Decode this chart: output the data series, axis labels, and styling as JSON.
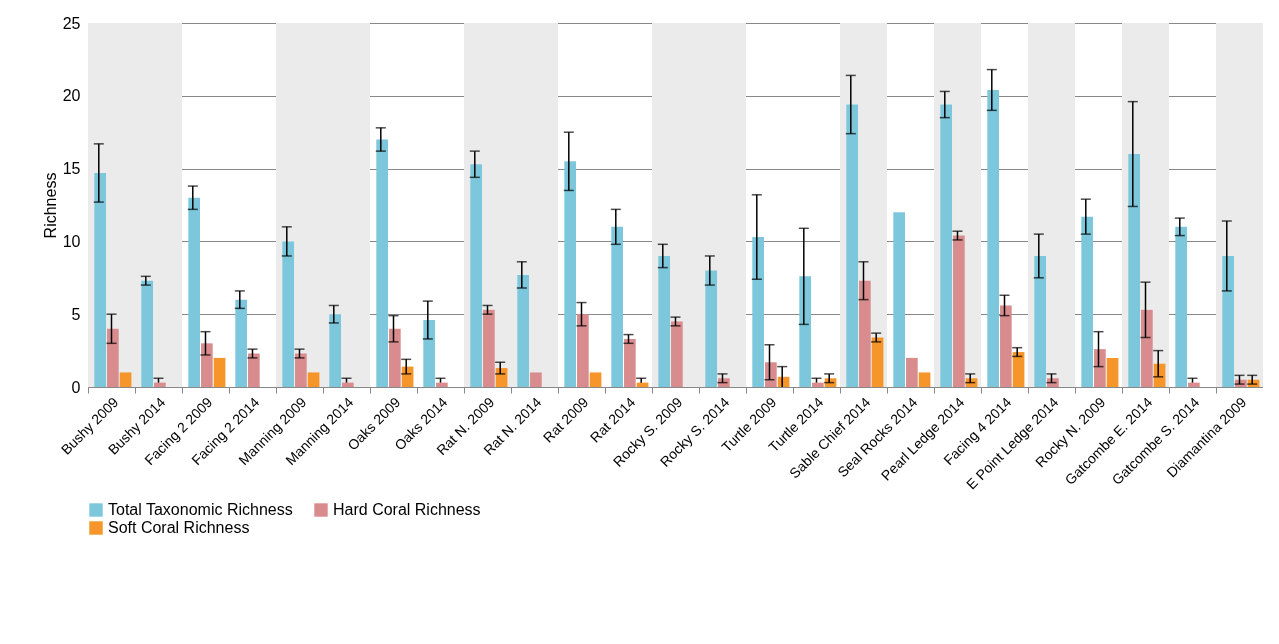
{
  "chart_data": {
    "type": "bar",
    "ylabel": "Richness",
    "categories": [
      "Bushy 2009",
      "Bushy 2014",
      "Facing 2 2009",
      "Facing 2 2014",
      "Manning 2009",
      "Manning 2014",
      "Oaks 2009",
      "Oaks 2014",
      "Rat N. 2009",
      "Rat N. 2014",
      "Rat 2009",
      "Rat 2014",
      "Rocky S. 2009",
      "Rocky S. 2014",
      "Turtle 2009",
      "Turtle 2014",
      "Sable Chief 2014",
      "Seal Rocks 2014",
      "Pearl Ledge 2014",
      "Facing 4 2014",
      "E Point Ledge 2014",
      "Rocky N. 2009",
      "Gatcombe E. 2014",
      "Gatcombe S. 2014",
      "Diamantina 2009"
    ],
    "series": [
      {
        "name": "Total Taxonomic Richness",
        "color": "#7cc7dc",
        "values": [
          14.7,
          7.3,
          13,
          6,
          10,
          5,
          17,
          4.6,
          15.3,
          7.7,
          15.5,
          11,
          9,
          8,
          10.3,
          7.6,
          19.4,
          12,
          19.4,
          20.4,
          9,
          11.7,
          16,
          11,
          9
        ],
        "errors": [
          2,
          0.3,
          0.8,
          0.6,
          1,
          0.6,
          0.8,
          1.3,
          0.9,
          0.9,
          2,
          1.2,
          0.8,
          1,
          2.9,
          3.3,
          2,
          null,
          0.9,
          1.4,
          1.5,
          1.2,
          3.6,
          0.6,
          2.4
        ]
      },
      {
        "name": "Hard Coral Richness",
        "color": "#d98c8e",
        "values": [
          4,
          0.3,
          3,
          2.3,
          2.3,
          0.3,
          4,
          0.3,
          5.3,
          1,
          5,
          3.3,
          4.5,
          0.6,
          1.7,
          0.3,
          7.3,
          2,
          10.4,
          5.6,
          0.6,
          2.6,
          5.3,
          0.3,
          0.5
        ],
        "errors": [
          1,
          [
            0.3,
            0.6
          ],
          0.8,
          0.3,
          0.3,
          [
            0.3,
            0.6
          ],
          0.9,
          [
            0.3,
            0.6
          ],
          0.3,
          null,
          0.8,
          0.3,
          0.3,
          0.3,
          1.2,
          [
            0.3,
            0.6
          ],
          1.3,
          null,
          0.3,
          0.7,
          0.3,
          1.2,
          1.9,
          [
            0.3,
            0.6
          ],
          0.3
        ]
      },
      {
        "name": "Soft Coral Richness",
        "color": "#f5952a",
        "values": [
          1,
          null,
          2,
          null,
          1,
          null,
          1.4,
          null,
          1.3,
          null,
          1,
          0.3,
          null,
          null,
          0.7,
          0.6,
          3.4,
          1,
          0.6,
          2.4,
          null,
          2,
          1.6,
          null,
          0.5
        ],
        "errors": [
          null,
          null,
          null,
          null,
          null,
          null,
          0.5,
          null,
          0.4,
          null,
          null,
          [
            0.3,
            0.6
          ],
          null,
          null,
          0.7,
          0.3,
          0.3,
          null,
          0.3,
          0.3,
          null,
          null,
          0.9,
          null,
          0.3
        ]
      }
    ],
    "ylim": [
      0,
      25
    ],
    "yticks": [
      0,
      5,
      10,
      15,
      20,
      25
    ],
    "grid": "y",
    "legend": "bottom",
    "bands": [
      {
        "axis": "x",
        "from": "Bushy 2009",
        "to": "Bushy 2009",
        "color": "#ebebeb"
      },
      {
        "axis": "x",
        "from": "Bushy 2014",
        "to": "Bushy 2014",
        "color": "#ebebeb"
      },
      {
        "axis": "x",
        "from": "Manning 2009",
        "to": "Manning 2009",
        "color": "#ebebeb"
      },
      {
        "axis": "x",
        "from": "Manning 2014",
        "to": "Manning 2014",
        "color": "#ebebeb"
      },
      {
        "axis": "x",
        "from": "Rat N. 2009",
        "to": "Rat N. 2009",
        "color": "#ebebeb"
      },
      {
        "axis": "x",
        "from": "Rat N. 2014",
        "to": "Rat N. 2014",
        "color": "#ebebeb"
      },
      {
        "axis": "x",
        "from": "Rocky S. 2009",
        "to": "Rocky S. 2009",
        "color": "#ebebeb"
      },
      {
        "axis": "x",
        "from": "Rocky S. 2014",
        "to": "Rocky S. 2014",
        "color": "#ebebeb"
      },
      {
        "axis": "x",
        "from": "Sable Chief 2014",
        "to": "Sable Chief 2014",
        "color": "#ebebeb"
      },
      {
        "axis": "x",
        "from": "Pearl Ledge 2014",
        "to": "Pearl Ledge 2014",
        "color": "#ebebeb"
      },
      {
        "axis": "x",
        "from": "E Point Ledge 2014",
        "to": "E Point Ledge 2014",
        "color": "#ebebeb"
      },
      {
        "axis": "x",
        "from": "Gatcombe E. 2014",
        "to": "Gatcombe E. 2014",
        "color": "#ebebeb"
      },
      {
        "axis": "x",
        "from": "Diamantina 2009",
        "to": "Diamantina 2009",
        "color": "#ebebeb"
      }
    ]
  }
}
